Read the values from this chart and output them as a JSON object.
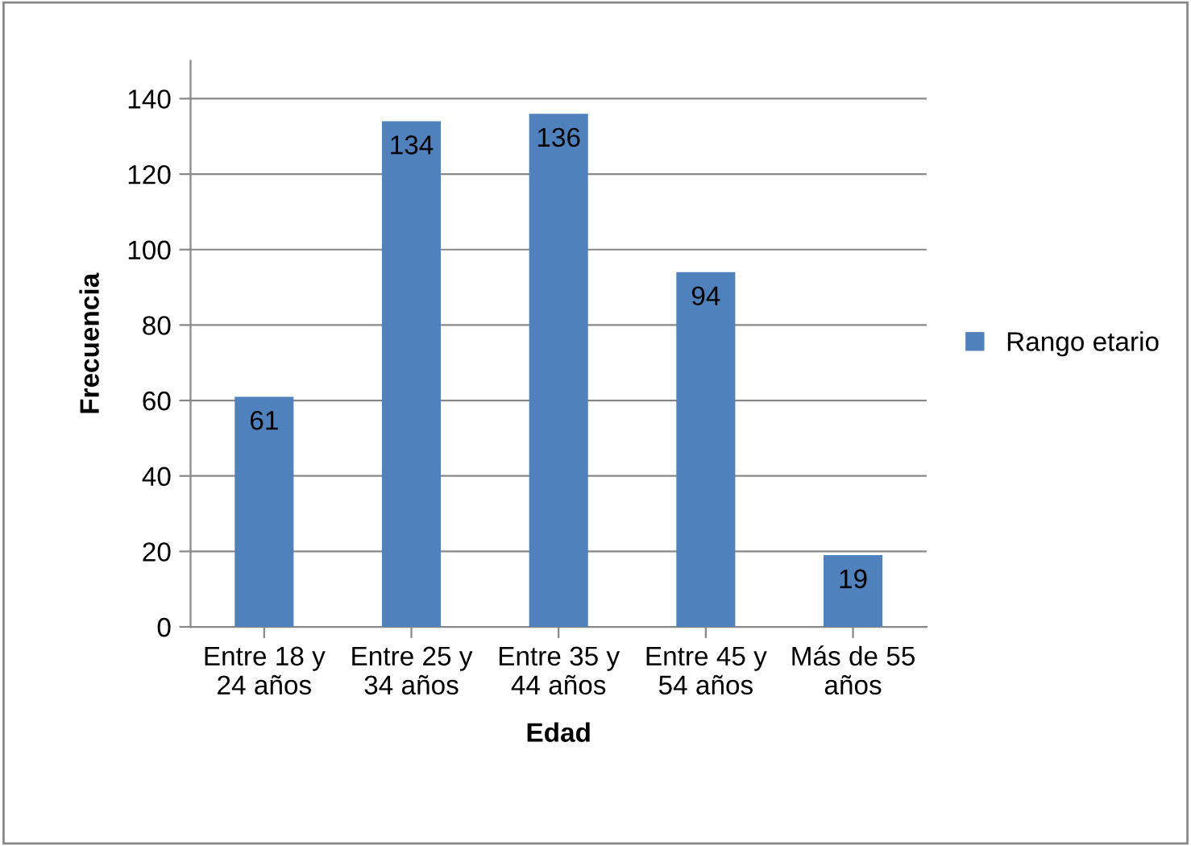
{
  "chart_data": {
    "type": "bar",
    "xlabel": "Edad",
    "ylabel": "Frecuencia",
    "categories": [
      "Entre 18 y\n24 años",
      "Entre 25 y\n34 años",
      "Entre 35 y\n44 años",
      "Entre 45 y\n54 años",
      "Más de 55\naños"
    ],
    "series": [
      {
        "name": "Rango etario",
        "color": "#4f81bd",
        "values": [
          61,
          134,
          136,
          94,
          19
        ]
      }
    ],
    "ylim": [
      0,
      150
    ],
    "yticks": [
      0,
      20,
      40,
      60,
      80,
      100,
      120,
      140
    ],
    "grid": "y",
    "legend": "right",
    "data_labels": true
  }
}
